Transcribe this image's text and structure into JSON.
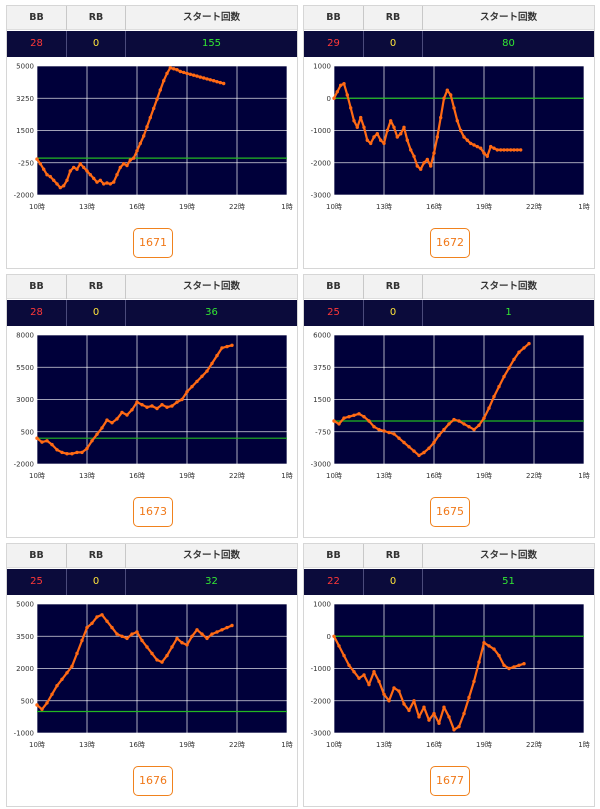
{
  "header": {
    "bb_label": "BB",
    "rb_label": "RB",
    "start_label": "スタート回数"
  },
  "x_ticks": [
    "10時",
    "13時",
    "16時",
    "19時",
    "22時",
    "1時"
  ],
  "colors": {
    "line": "#ff6a14",
    "zero_line": "#22b822",
    "plot_bg": "#00003a",
    "grid": "#ffffff"
  },
  "panels": [
    {
      "machine": "1671",
      "bb": "28",
      "rb": "0",
      "start": "155",
      "chart_data": {
        "type": "line",
        "ylim": [
          -2000,
          5000
        ],
        "yticks": [
          "5000",
          "3250",
          "1500",
          "-250",
          "-2000"
        ],
        "baseline": 0,
        "x": [
          0,
          0.2,
          0.4,
          0.6,
          0.8,
          1.0,
          1.2,
          1.4,
          1.6,
          1.8,
          2.0,
          2.2,
          2.4,
          2.6,
          2.8,
          3.0,
          3.2,
          3.4,
          3.6,
          3.8,
          4.0,
          4.2,
          4.4,
          4.6,
          4.8,
          5.0,
          5.2,
          5.4,
          5.6,
          5.8,
          6.0,
          6.2,
          6.4,
          6.6,
          6.8,
          7.0,
          7.2,
          7.4,
          7.6,
          7.8,
          8.0,
          8.2,
          8.4,
          8.6,
          8.8,
          9.0,
          9.2,
          9.4,
          9.6,
          9.8,
          10.0,
          10.2,
          10.4,
          10.6,
          10.8,
          11.0,
          11.2
        ],
        "y": [
          -50,
          -300,
          -600,
          -900,
          -1000,
          -1200,
          -1400,
          -1600,
          -1500,
          -1200,
          -700,
          -500,
          -600,
          -300,
          -500,
          -700,
          -900,
          -1100,
          -1300,
          -1200,
          -1400,
          -1350,
          -1400,
          -1300,
          -900,
          -500,
          -300,
          -400,
          -100,
          0,
          400,
          800,
          1200,
          1700,
          2200,
          2700,
          3200,
          3700,
          4200,
          4600,
          4900,
          4850,
          4800,
          4700,
          4650,
          4600,
          4550,
          4500,
          4450,
          4400,
          4350,
          4300,
          4250,
          4200,
          4150,
          4100,
          4050
        ]
      }
    },
    {
      "machine": "1672",
      "bb": "29",
      "rb": "0",
      "start": "80",
      "chart_data": {
        "type": "line",
        "ylim": [
          -3000,
          1000
        ],
        "yticks": [
          "1000",
          "0",
          "-1000",
          "-2000",
          "-3000"
        ],
        "baseline": 0,
        "x": [
          0,
          0.2,
          0.4,
          0.6,
          0.8,
          1.0,
          1.2,
          1.4,
          1.6,
          1.8,
          2.0,
          2.2,
          2.4,
          2.6,
          2.8,
          3.0,
          3.2,
          3.4,
          3.6,
          3.8,
          4.0,
          4.2,
          4.4,
          4.6,
          4.8,
          5.0,
          5.2,
          5.4,
          5.6,
          5.8,
          6.0,
          6.2,
          6.4,
          6.6,
          6.8,
          7.0,
          7.2,
          7.4,
          7.6,
          7.8,
          8.0,
          8.2,
          8.4,
          8.6,
          8.8,
          9.0,
          9.2,
          9.4,
          9.6,
          9.8,
          10.0,
          10.2,
          10.4,
          10.6,
          10.8,
          11.0,
          11.2
        ],
        "y": [
          0,
          200,
          400,
          450,
          100,
          -300,
          -700,
          -900,
          -600,
          -900,
          -1300,
          -1400,
          -1200,
          -1100,
          -1300,
          -1400,
          -1000,
          -700,
          -900,
          -1200,
          -1100,
          -900,
          -1300,
          -1600,
          -1800,
          -2100,
          -2200,
          -2000,
          -1900,
          -2100,
          -1700,
          -1200,
          -600,
          0,
          250,
          100,
          -300,
          -700,
          -1000,
          -1200,
          -1300,
          -1400,
          -1450,
          -1500,
          -1550,
          -1700,
          -1800,
          -1500,
          -1550,
          -1600,
          -1600,
          -1600,
          -1600,
          -1600,
          -1600,
          -1600,
          -1600
        ]
      }
    },
    {
      "machine": "1673",
      "bb": "28",
      "rb": "0",
      "start": "36",
      "chart_data": {
        "type": "line",
        "ylim": [
          -2000,
          8000
        ],
        "yticks": [
          "8000",
          "5500",
          "3000",
          "500",
          "-2000"
        ],
        "baseline": 0,
        "x": [
          0,
          0.3,
          0.6,
          0.9,
          1.2,
          1.5,
          1.8,
          2.1,
          2.4,
          2.7,
          3.0,
          3.3,
          3.6,
          3.9,
          4.2,
          4.5,
          4.8,
          5.1,
          5.4,
          5.7,
          6.0,
          6.3,
          6.6,
          6.9,
          7.2,
          7.5,
          7.8,
          8.1,
          8.4,
          8.7,
          9.0,
          9.3,
          9.6,
          9.9,
          10.2,
          10.5,
          10.8,
          11.1,
          11.4,
          11.7
        ],
        "y": [
          0,
          -300,
          -200,
          -500,
          -900,
          -1100,
          -1200,
          -1200,
          -1100,
          -1100,
          -800,
          -200,
          300,
          800,
          1400,
          1200,
          1500,
          2000,
          1800,
          2200,
          2800,
          2600,
          2400,
          2500,
          2300,
          2600,
          2400,
          2500,
          2800,
          3000,
          3600,
          4000,
          4400,
          4800,
          5200,
          5800,
          6400,
          7000,
          7100,
          7200
        ]
      }
    },
    {
      "machine": "1675",
      "bb": "25",
      "rb": "0",
      "start": "1",
      "chart_data": {
        "type": "line",
        "ylim": [
          -3000,
          6000
        ],
        "yticks": [
          "6000",
          "3750",
          "1500",
          "-750",
          "-3000"
        ],
        "baseline": 0,
        "x": [
          0,
          0.3,
          0.6,
          0.9,
          1.2,
          1.5,
          1.8,
          2.1,
          2.4,
          2.7,
          3.0,
          3.3,
          3.6,
          3.9,
          4.2,
          4.5,
          4.8,
          5.1,
          5.4,
          5.7,
          6.0,
          6.3,
          6.6,
          6.9,
          7.2,
          7.5,
          7.8,
          8.1,
          8.4,
          8.7,
          9.0,
          9.3,
          9.6,
          9.9,
          10.2,
          10.5,
          10.8,
          11.1,
          11.4,
          11.7
        ],
        "y": [
          0,
          -200,
          200,
          300,
          400,
          500,
          300,
          0,
          -400,
          -600,
          -700,
          -800,
          -900,
          -1200,
          -1500,
          -1800,
          -2100,
          -2400,
          -2200,
          -1900,
          -1500,
          -1000,
          -600,
          -200,
          100,
          0,
          -200,
          -400,
          -600,
          -300,
          200,
          900,
          1700,
          2400,
          3100,
          3700,
          4300,
          4800,
          5100,
          5400
        ]
      }
    },
    {
      "machine": "1676",
      "bb": "25",
      "rb": "0",
      "start": "32",
      "chart_data": {
        "type": "line",
        "ylim": [
          -1000,
          5000
        ],
        "yticks": [
          "5000",
          "3500",
          "2000",
          "500",
          "-1000"
        ],
        "baseline": 0,
        "x": [
          0,
          0.3,
          0.6,
          0.9,
          1.2,
          1.5,
          1.8,
          2.1,
          2.4,
          2.7,
          3.0,
          3.3,
          3.6,
          3.9,
          4.2,
          4.5,
          4.8,
          5.1,
          5.4,
          5.7,
          6.0,
          6.3,
          6.6,
          6.9,
          7.2,
          7.5,
          7.8,
          8.1,
          8.4,
          8.7,
          9.0,
          9.3,
          9.6,
          9.9,
          10.2,
          10.5,
          10.8,
          11.1,
          11.4,
          11.7
        ],
        "y": [
          300,
          100,
          400,
          800,
          1200,
          1500,
          1800,
          2100,
          2700,
          3300,
          3900,
          4100,
          4400,
          4500,
          4200,
          3900,
          3600,
          3500,
          3400,
          3600,
          3700,
          3300,
          3000,
          2700,
          2400,
          2300,
          2600,
          3000,
          3400,
          3200,
          3100,
          3500,
          3800,
          3600,
          3400,
          3600,
          3700,
          3800,
          3900,
          4000
        ]
      }
    },
    {
      "machine": "1677",
      "bb": "22",
      "rb": "0",
      "start": "51",
      "chart_data": {
        "type": "line",
        "ylim": [
          -3000,
          1000
        ],
        "yticks": [
          "1000",
          "0",
          "-1000",
          "-2000",
          "-3000"
        ],
        "baseline": 0,
        "x": [
          0,
          0.3,
          0.6,
          0.9,
          1.2,
          1.5,
          1.8,
          2.1,
          2.4,
          2.7,
          3.0,
          3.3,
          3.6,
          3.9,
          4.2,
          4.5,
          4.8,
          5.1,
          5.4,
          5.7,
          6.0,
          6.3,
          6.6,
          6.9,
          7.2,
          7.5,
          7.8,
          8.1,
          8.4,
          8.7,
          9.0,
          9.3,
          9.6,
          9.9,
          10.2,
          10.5,
          10.8,
          11.1,
          11.4
        ],
        "y": [
          0,
          -300,
          -600,
          -900,
          -1100,
          -1300,
          -1200,
          -1500,
          -1100,
          -1400,
          -1800,
          -2000,
          -1600,
          -1700,
          -2100,
          -2300,
          -2000,
          -2500,
          -2200,
          -2600,
          -2400,
          -2700,
          -2200,
          -2500,
          -2900,
          -2800,
          -2400,
          -1900,
          -1400,
          -800,
          -200,
          -300,
          -400,
          -600,
          -900,
          -1000,
          -950,
          -900,
          -850
        ]
      }
    }
  ]
}
